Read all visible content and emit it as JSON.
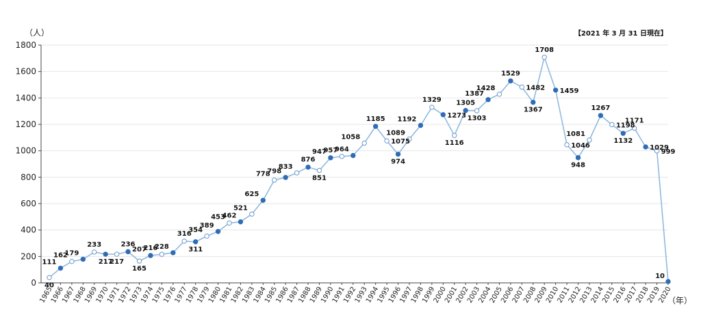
{
  "chart_data": {
    "type": "line",
    "ylabel": "（人）",
    "xlabel": "（年）",
    "note": "【2021 年 3 月 31 日現在】",
    "ylim": [
      0,
      1800
    ],
    "yticks": [
      0,
      200,
      400,
      600,
      800,
      1000,
      1200,
      1400,
      1600,
      1800
    ],
    "grid": true,
    "legend": "none",
    "colors": {
      "line": "#8fb8df",
      "marker_filled": "#2f6cb5",
      "marker_open_fill": "#ffffff",
      "marker_open_stroke": "#6a98cc",
      "grid": "#e6e6e6",
      "axis": "#444444"
    },
    "x": [
      "1965",
      "1966",
      "1967",
      "1968",
      "1969",
      "1970",
      "1971",
      "1972",
      "1973",
      "1974",
      "1975",
      "1976",
      "1977",
      "1978",
      "1979",
      "1980",
      "1981",
      "1982",
      "1983",
      "1984",
      "1985",
      "1986",
      "1987",
      "1988",
      "1989",
      "1990",
      "1991",
      "1992",
      "1993",
      "1994",
      "1995",
      "1996",
      "1997",
      "1998",
      "1999",
      "2000",
      "2001",
      "2002",
      "2003",
      "2004",
      "2005",
      "2006",
      "2007",
      "2008",
      "2009",
      "2010",
      "2011",
      "2012",
      "2013",
      "2014",
      "2015",
      "2016",
      "2017",
      "2018",
      "2019",
      "2020"
    ],
    "series": [
      {
        "values": [
          40,
          111,
          162,
          179,
          233,
          217,
          217,
          236,
          165,
          207,
          216,
          228,
          316,
          311,
          354,
          389,
          453,
          462,
          521,
          625,
          778,
          798,
          833,
          876,
          851,
          947,
          957,
          964,
          1058,
          1185,
          1075,
          974,
          1089,
          1192,
          1329,
          1273,
          1116,
          1305,
          1303,
          1387,
          1428,
          1529,
          1482,
          1367,
          1708,
          1459,
          1046,
          948,
          1081,
          1267,
          1198,
          1132,
          1171,
          1029,
          999,
          10
        ],
        "markers": [
          "o",
          "f",
          "o",
          "f",
          "o",
          "f",
          "o",
          "f",
          "o",
          "f",
          "o",
          "f",
          "o",
          "f",
          "o",
          "f",
          "o",
          "f",
          "o",
          "f",
          "o",
          "f",
          "o",
          "f",
          "o",
          "f",
          "o",
          "f",
          "o",
          "f",
          "o",
          "f",
          "o",
          "f",
          "o",
          "f",
          "o",
          "f",
          "o",
          "f",
          "o",
          "f",
          "o",
          "f",
          "o",
          "f",
          "o",
          "f",
          "o",
          "f",
          "o",
          "f",
          "o",
          "f",
          "o",
          "f"
        ]
      }
    ]
  }
}
